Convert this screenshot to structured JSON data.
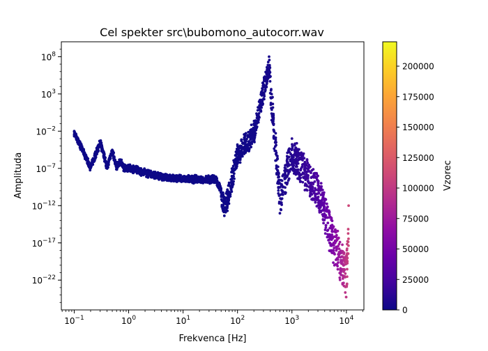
{
  "chart_data": {
    "type": "scatter",
    "title": "Cel spekter src\\bubomono_autocorr.wav",
    "xlabel": "Frekvenca [Hz]",
    "ylabel": "Amplituda",
    "xscale": "log",
    "yscale": "log",
    "xlim": [
      0.058,
      21000
    ],
    "ylim": [
      1e-26,
      10000000000.0
    ],
    "x_ticks": [
      {
        "value": 0.1,
        "base": "10",
        "exp": "−1"
      },
      {
        "value": 1,
        "base": "10",
        "exp": "0"
      },
      {
        "value": 10,
        "base": "10",
        "exp": "1"
      },
      {
        "value": 100,
        "base": "10",
        "exp": "2"
      },
      {
        "value": 1000,
        "base": "10",
        "exp": "3"
      },
      {
        "value": 10000,
        "base": "10",
        "exp": "4"
      }
    ],
    "y_ticks": [
      {
        "value": 100000000.0,
        "base": "10",
        "exp": "8"
      },
      {
        "value": 1000.0,
        "base": "10",
        "exp": "3"
      },
      {
        "value": 0.01,
        "base": "10",
        "exp": "−2"
      },
      {
        "value": 1e-07,
        "base": "10",
        "exp": "−7"
      },
      {
        "value": 1e-12,
        "base": "10",
        "exp": "−12"
      },
      {
        "value": 1e-17,
        "base": "10",
        "exp": "−17"
      },
      {
        "value": 1e-22,
        "base": "10",
        "exp": "−22"
      }
    ],
    "grid": false,
    "colormap": "plasma",
    "colorbar": {
      "label": "Vzorec",
      "min": 0,
      "max": 220000,
      "ticks": [
        "0",
        "25000",
        "50000",
        "75000",
        "100000",
        "125000",
        "150000",
        "175000",
        "200000"
      ],
      "tick_values": [
        0,
        25000,
        50000,
        75000,
        100000,
        125000,
        150000,
        175000,
        200000
      ]
    },
    "points": [
      {
        "x": 0.1,
        "y": 0.01,
        "c": 1
      },
      {
        "x": 0.2,
        "y": 2e-07,
        "c": 2
      },
      {
        "x": 0.3,
        "y": 0.0005,
        "c": 3
      },
      {
        "x": 0.4,
        "y": 2e-07,
        "c": 4
      },
      {
        "x": 0.5,
        "y": 3e-05,
        "c": 5
      },
      {
        "x": 0.6,
        "y": 2e-07,
        "c": 6
      },
      {
        "x": 0.7,
        "y": 1.5e-06,
        "c": 7
      },
      {
        "x": 0.8,
        "y": 2e-07,
        "c": 8
      },
      {
        "x": 1.0,
        "y": 1.6e-07,
        "c": 10
      },
      {
        "x": 2.0,
        "y": 4e-08,
        "c": 20
      },
      {
        "x": 5.0,
        "y": 8e-09,
        "c": 50
      },
      {
        "x": 10,
        "y": 6e-09,
        "c": 100
      },
      {
        "x": 20,
        "y": 5e-09,
        "c": 200
      },
      {
        "x": 40,
        "y": 5e-09,
        "c": 400
      },
      {
        "x": 60,
        "y": 1e-11,
        "c": 600
      },
      {
        "x": 100,
        "y": 0.0001,
        "c": 1000
      },
      {
        "x": 200,
        "y": 0.1,
        "c": 2000
      },
      {
        "x": 380,
        "y": 100000000.0,
        "c": 3800
      },
      {
        "x": 600,
        "y": 1e-09,
        "c": 6000
      },
      {
        "x": 1000,
        "y": 0.001,
        "c": 10000
      },
      {
        "x": 3000,
        "y": 1e-08,
        "c": 30000
      },
      {
        "x": 10000,
        "y": 1e-19,
        "c": 100000
      },
      {
        "x": 11000,
        "y": 1e-12,
        "c": 110000
      }
    ]
  }
}
